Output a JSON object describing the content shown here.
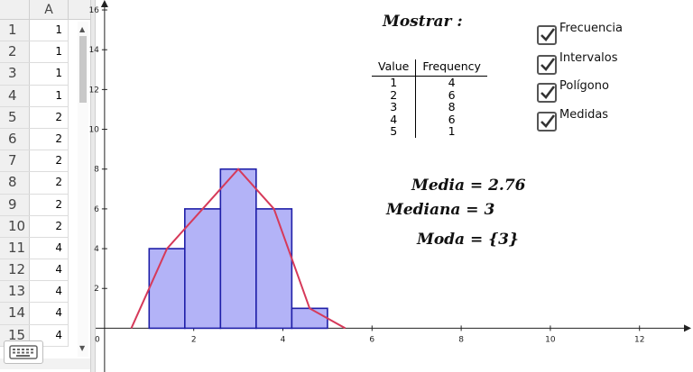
{
  "spreadsheet": {
    "column_header": "A",
    "rows": [
      {
        "row": "1",
        "value": "1"
      },
      {
        "row": "2",
        "value": "1"
      },
      {
        "row": "3",
        "value": "1"
      },
      {
        "row": "4",
        "value": "1"
      },
      {
        "row": "5",
        "value": "2"
      },
      {
        "row": "6",
        "value": "2"
      },
      {
        "row": "7",
        "value": "2"
      },
      {
        "row": "8",
        "value": "2"
      },
      {
        "row": "9",
        "value": "2"
      },
      {
        "row": "10",
        "value": "2"
      },
      {
        "row": "11",
        "value": "4"
      },
      {
        "row": "12",
        "value": "4"
      },
      {
        "row": "13",
        "value": "4"
      },
      {
        "row": "14",
        "value": "4"
      },
      {
        "row": "15",
        "value": "4"
      }
    ]
  },
  "title": "Mostrar :",
  "frequency_table": {
    "headers": [
      "Value",
      "Frequency"
    ],
    "rows": [
      [
        "1",
        "4"
      ],
      [
        "2",
        "6"
      ],
      [
        "3",
        "8"
      ],
      [
        "4",
        "6"
      ],
      [
        "5",
        "1"
      ]
    ]
  },
  "checkboxes": [
    {
      "label": "Frecuencia",
      "checked": true
    },
    {
      "label": "Intervalos",
      "checked": true
    },
    {
      "label": "Polígono",
      "checked": true
    },
    {
      "label": "Medidas",
      "checked": true
    }
  ],
  "stats": {
    "media": "Media = 2.76",
    "mediana": "Mediana = 3",
    "moda": "Moda = {3}"
  },
  "colors": {
    "bar_fill": "#b3b3f7",
    "bar_stroke": "#1f1fa8",
    "polygon": "#d63a5a",
    "checkmark": "#333333"
  },
  "chart_data": {
    "type": "bar",
    "x_ticks": [
      "0",
      "2",
      "4",
      "6",
      "8",
      "10",
      "12"
    ],
    "y_ticks": [
      "2",
      "4",
      "6",
      "8",
      "10",
      "12",
      "14",
      "16"
    ],
    "xlim": [
      -0.2,
      13.2
    ],
    "ylim": [
      -2.2,
      16.5
    ],
    "bins": [
      {
        "from": 1.0,
        "to": 1.8,
        "height": 4
      },
      {
        "from": 1.8,
        "to": 2.6,
        "height": 6
      },
      {
        "from": 2.6,
        "to": 3.4,
        "height": 8
      },
      {
        "from": 3.4,
        "to": 4.2,
        "height": 6
      },
      {
        "from": 4.2,
        "to": 5.0,
        "height": 1
      }
    ],
    "polygon": {
      "x": [
        0.6,
        1.4,
        2.2,
        3.0,
        3.8,
        4.6,
        5.4
      ],
      "y": [
        0,
        4,
        6,
        8,
        6,
        1,
        0
      ]
    }
  }
}
